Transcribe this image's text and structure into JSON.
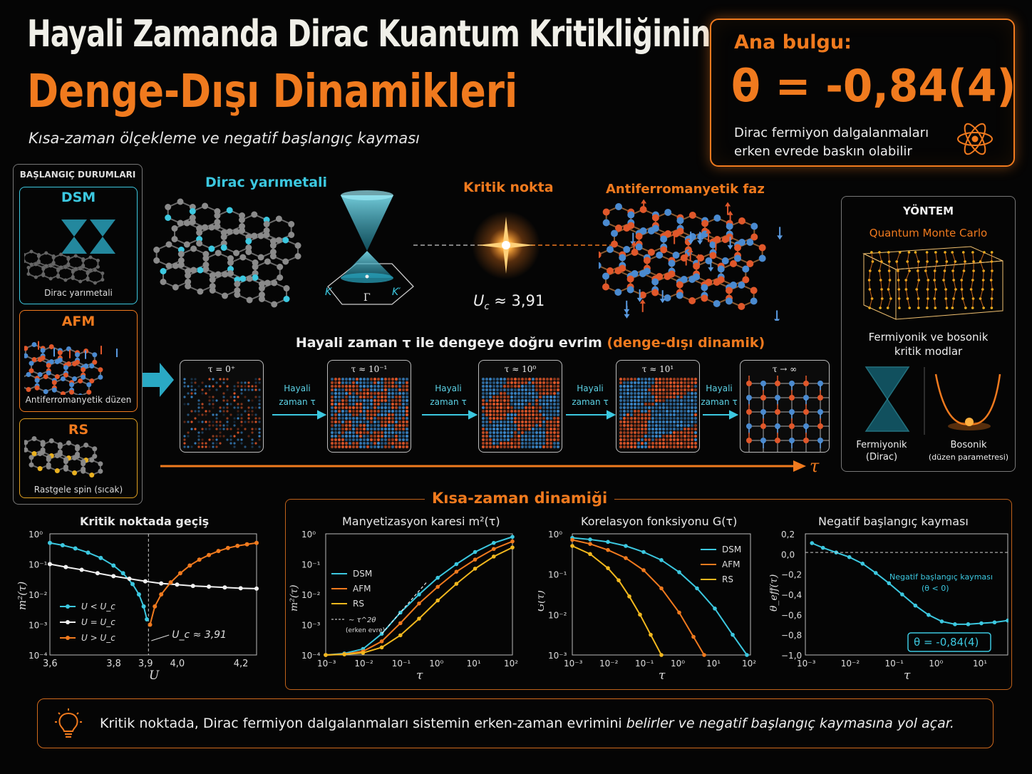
{
  "header": {
    "title_line1": "Hayali Zamanda Dirac Kuantum Kritikliğinin",
    "title_line2": "Denge-Dışı Dinamikleri",
    "subtitle": "Kısa-zaman ölçekleme ve negatif başlangıç kayması"
  },
  "key_finding": {
    "label": "Ana bulgu:",
    "value": "θ = -0,84(4)",
    "desc_line1": "Dirac fermiyon dalgalanmaları",
    "desc_line2": "erken evrede baskın olabilir",
    "icon": "atom-icon"
  },
  "initial_states": {
    "header": "BAŞLANGIÇ DURUMLARI",
    "items": [
      {
        "name": "DSM",
        "caption": "Dirac yarımetali"
      },
      {
        "name": "AFM",
        "caption": "Antiferromanyetik düzen"
      },
      {
        "name": "RS",
        "caption": "Rastgele spin (sıcak)"
      }
    ]
  },
  "phase_diagram": {
    "dirac_label": "Dirac yarımetali",
    "critical_label": "Kritik nokta",
    "uc_label": "≈ 3,91",
    "afm_label": "Antiferromanyetik faz",
    "cone_k": "K",
    "cone_gamma": "Γ",
    "cone_kprime": "K′"
  },
  "evolution": {
    "title_prefix": "Hayali zaman τ  ile dengeye doğru evrim",
    "title_suffix": "(denge-dışı dinamik)",
    "step_label_1": "Hayali",
    "step_label_2": "zaman τ",
    "tau_axis": "τ",
    "snapshots": [
      "τ = 0⁺",
      "τ ≈ 10⁻¹",
      "τ ≈ 10⁰",
      "τ ≈ 10¹",
      "τ → ∞"
    ]
  },
  "method": {
    "header": "YÖNTEM",
    "qmc": "Quantum Monte Carlo",
    "modes_line1": "Fermiyonik ve bosonik",
    "modes_line2": "kritik modlar",
    "fermionic_line1": "Fermiyonik",
    "fermionic_line2": "(Dirac)",
    "bosonic_line1": "Bosonik",
    "bosonic_line2": "(düzen parametresi)"
  },
  "short_time_title": "Kısa-zaman dinamiği",
  "conclusion": {
    "text_normal": "Kritik noktada, Dirac fermiyon dalgalanmaları sistemin erken-zaman evrimini ",
    "text_italic": "belirler ve negatif başlangıç kaymasına yol açar.",
    "icon": "lightbulb-icon"
  },
  "colors": {
    "orange": "#f07a1e",
    "cyan": "#3cc8e0",
    "yellow": "#f2b81e",
    "white": "#f0f0f0"
  },
  "chart_data": [
    {
      "type": "line",
      "title": "Kritik noktada geçiş",
      "xlabel": "U",
      "ylabel": "m²(τ)",
      "xlim": [
        3.6,
        4.25
      ],
      "ylim_log10": [
        -4,
        0
      ],
      "y_scale": "log",
      "xticks": [
        "3,6",
        "3,8",
        "3,9",
        "4,0",
        "4,2"
      ],
      "yticks": [
        "10⁰",
        "10⁻¹",
        "10⁻²",
        "10⁻³",
        "10⁻⁴"
      ],
      "uc_annotation": "U_c ≈ 3,91",
      "series": [
        {
          "name": "U < U_c",
          "color": "#3cc8e0",
          "x": [
            3.6,
            3.64,
            3.68,
            3.72,
            3.76,
            3.8,
            3.83,
            3.86,
            3.88,
            3.895,
            3.905
          ],
          "y": [
            0.5,
            0.42,
            0.33,
            0.24,
            0.16,
            0.09,
            0.05,
            0.022,
            0.01,
            0.004,
            0.0015
          ]
        },
        {
          "name": "U = U_c",
          "color": "#f0f0f0",
          "x": [
            3.6,
            3.65,
            3.7,
            3.75,
            3.8,
            3.85,
            3.9,
            3.95,
            4.0,
            4.05,
            4.1,
            4.15,
            4.2,
            4.25
          ],
          "y": [
            0.1,
            0.08,
            0.065,
            0.05,
            0.04,
            0.033,
            0.027,
            0.023,
            0.021,
            0.019,
            0.018,
            0.017,
            0.016,
            0.0155
          ]
        },
        {
          "name": "U > U_c",
          "color": "#f07a1e",
          "x": [
            3.915,
            3.93,
            3.95,
            3.98,
            4.01,
            4.04,
            4.07,
            4.1,
            4.13,
            4.16,
            4.19,
            4.22,
            4.25
          ],
          "y": [
            0.001,
            0.004,
            0.01,
            0.025,
            0.05,
            0.09,
            0.14,
            0.2,
            0.27,
            0.34,
            0.4,
            0.45,
            0.5
          ]
        }
      ]
    },
    {
      "type": "line",
      "title": "Manyetizasyon karesi m²(τ)",
      "xlabel": "τ",
      "ylabel": "m²(τ)",
      "x_scale": "log",
      "y_scale": "log",
      "xlim_log10": [
        -3,
        2
      ],
      "ylim_log10": [
        -4,
        0
      ],
      "xticks": [
        "10⁻³",
        "10⁻²",
        "10⁻¹",
        "10⁰",
        "10¹",
        "10²"
      ],
      "yticks": [
        "10⁰",
        "10⁻¹",
        "10⁻²",
        "10⁻³",
        "10⁻⁴"
      ],
      "guide_label": "~ τ^2θ",
      "guide_note": "(erken evre)",
      "series": [
        {
          "name": "DSM",
          "color": "#3cc8e0",
          "log10x": [
            -3,
            -2.5,
            -2,
            -1.5,
            -1,
            -0.5,
            0,
            0.5,
            1,
            1.5,
            2
          ],
          "log10y": [
            -4,
            -3.95,
            -3.8,
            -3.3,
            -2.6,
            -2.0,
            -1.45,
            -1.0,
            -0.6,
            -0.3,
            -0.1
          ]
        },
        {
          "name": "AFM",
          "color": "#f07a1e",
          "log10x": [
            -3,
            -2.5,
            -2,
            -1.5,
            -1,
            -0.5,
            0,
            0.5,
            1,
            1.5,
            2
          ],
          "log10y": [
            -4,
            -3.97,
            -3.88,
            -3.55,
            -2.95,
            -2.3,
            -1.75,
            -1.25,
            -0.85,
            -0.5,
            -0.25
          ]
        },
        {
          "name": "RS",
          "color": "#f2b81e",
          "log10x": [
            -3,
            -2.5,
            -2,
            -1.5,
            -1,
            -0.5,
            0,
            0.5,
            1,
            1.5,
            2
          ],
          "log10y": [
            -4,
            -3.98,
            -3.93,
            -3.75,
            -3.35,
            -2.8,
            -2.2,
            -1.65,
            -1.15,
            -0.75,
            -0.45
          ]
        }
      ]
    },
    {
      "type": "line",
      "title": "Korelasyon fonksiyonu G(τ)",
      "xlabel": "τ",
      "ylabel": "G(τ)",
      "x_scale": "log",
      "y_scale": "log",
      "xlim_log10": [
        -3,
        2
      ],
      "ylim_log10": [
        -3,
        0
      ],
      "xticks": [
        "10⁻³",
        "10⁻²",
        "10⁻¹",
        "10⁰",
        "10¹",
        "10²"
      ],
      "yticks": [
        "10⁰",
        "10⁻¹",
        "10⁻²",
        "10⁻³"
      ],
      "series": [
        {
          "name": "DSM",
          "color": "#3cc8e0",
          "log10x": [
            -3,
            -2.5,
            -2,
            -1.5,
            -1,
            -0.5,
            0,
            0.5,
            1,
            1.5,
            1.9
          ],
          "log10y": [
            -0.1,
            -0.14,
            -0.2,
            -0.3,
            -0.45,
            -0.65,
            -0.95,
            -1.35,
            -1.85,
            -2.5,
            -3
          ]
        },
        {
          "name": "AFM",
          "color": "#f07a1e",
          "log10x": [
            -3,
            -2.5,
            -2,
            -1.5,
            -1,
            -0.5,
            0,
            0.4,
            0.7
          ],
          "log10y": [
            -0.15,
            -0.25,
            -0.4,
            -0.6,
            -0.9,
            -1.35,
            -1.95,
            -2.55,
            -3
          ]
        },
        {
          "name": "RS",
          "color": "#f2b81e",
          "log10x": [
            -3,
            -2.5,
            -2,
            -1.7,
            -1.4,
            -1.1,
            -0.8,
            -0.5
          ],
          "log10y": [
            -0.3,
            -0.5,
            -0.85,
            -1.15,
            -1.55,
            -2.0,
            -2.5,
            -3
          ]
        }
      ]
    },
    {
      "type": "line",
      "title": "Negatif başlangıç kayması",
      "xlabel": "τ",
      "ylabel": "θ_eff(τ)",
      "x_scale": "log",
      "xlim_log10": [
        -3,
        1.6
      ],
      "ylim": [
        -1.1,
        0.2
      ],
      "xticks": [
        "10⁻³",
        "10⁻²",
        "10⁻¹",
        "10⁰",
        "10¹"
      ],
      "yticks": [
        "0,2",
        "0,0",
        "−0,2",
        "−0,4",
        "−0,6",
        "−0,8",
        "−1,0"
      ],
      "annotation_line1": "Negatif başlangıç kayması",
      "annotation_line2": "(θ < 0)",
      "result": "θ = -0,84(4)",
      "series": [
        {
          "name": "θ_eff",
          "color": "#3cc8e0",
          "log10x": [
            -2.85,
            -2.6,
            -2.3,
            -2.0,
            -1.7,
            -1.4,
            -1.1,
            -0.8,
            -0.5,
            -0.2,
            0.1,
            0.4,
            0.7,
            1.0,
            1.3,
            1.6
          ],
          "y": [
            0.1,
            0.05,
            0.0,
            -0.05,
            -0.12,
            -0.22,
            -0.33,
            -0.45,
            -0.57,
            -0.67,
            -0.74,
            -0.77,
            -0.77,
            -0.76,
            -0.75,
            -0.73
          ]
        }
      ]
    }
  ]
}
